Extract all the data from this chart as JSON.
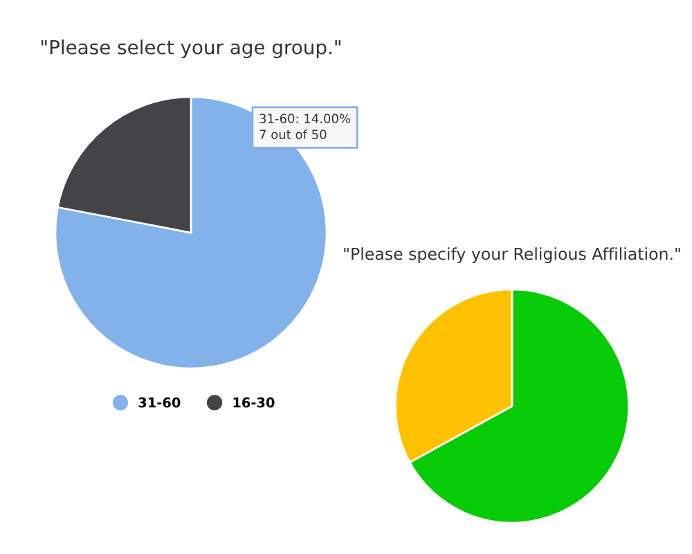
{
  "chart_data": [
    {
      "type": "pie",
      "title": "\"Please select your age group.\"",
      "categories": [
        "31-60",
        "16-30"
      ],
      "values": [
        78,
        22
      ],
      "colors": [
        "#83b1ea",
        "#434348"
      ],
      "legend": "bottom",
      "annotations": [
        "31-60: 14.00%\n7 out of 50"
      ]
    },
    {
      "type": "pie",
      "title": "\"Please specify your Religious Affiliation.\"",
      "categories": [
        null,
        null
      ],
      "values": [
        67,
        33
      ],
      "colors": [
        "#07cb07",
        "#ffc200"
      ]
    }
  ]
}
